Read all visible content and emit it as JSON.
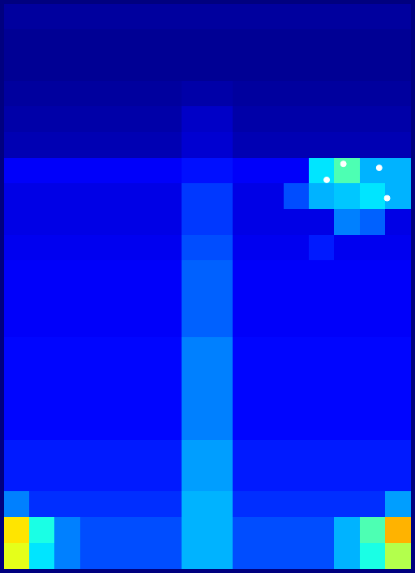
{
  "chart_data": {
    "type": "heatmap",
    "xlim": [
      0,
      512
    ],
    "ylim": [
      0,
      707
    ],
    "zlim": [
      0,
      1
    ],
    "grid": false,
    "tick_labels": false,
    "cells": [
      [
        0.03,
        0.03,
        0.03,
        0.03,
        0.03,
        0.03,
        0.03,
        0.03,
        0.03,
        0.03,
        0.03,
        0.03,
        0.03,
        0.03,
        0.03,
        0.03
      ],
      [
        0.02,
        0.02,
        0.02,
        0.02,
        0.02,
        0.02,
        0.02,
        0.02,
        0.02,
        0.02,
        0.02,
        0.02,
        0.02,
        0.02,
        0.02,
        0.02
      ],
      [
        0.02,
        0.02,
        0.02,
        0.02,
        0.02,
        0.02,
        0.02,
        0.02,
        0.02,
        0.02,
        0.02,
        0.02,
        0.02,
        0.02,
        0.02,
        0.02
      ],
      [
        0.03,
        0.03,
        0.03,
        0.03,
        0.03,
        0.03,
        0.03,
        0.04,
        0.04,
        0.03,
        0.03,
        0.03,
        0.03,
        0.03,
        0.03,
        0.03
      ],
      [
        0.04,
        0.04,
        0.04,
        0.04,
        0.04,
        0.04,
        0.04,
        0.07,
        0.07,
        0.04,
        0.04,
        0.04,
        0.04,
        0.04,
        0.04,
        0.04
      ],
      [
        0.05,
        0.05,
        0.05,
        0.05,
        0.05,
        0.05,
        0.05,
        0.08,
        0.08,
        0.05,
        0.05,
        0.05,
        0.05,
        0.05,
        0.05,
        0.05
      ],
      [
        0.12,
        0.12,
        0.12,
        0.12,
        0.12,
        0.12,
        0.12,
        0.14,
        0.14,
        0.12,
        0.12,
        0.12,
        0.35,
        0.45,
        0.3,
        0.3
      ],
      [
        0.1,
        0.1,
        0.1,
        0.1,
        0.1,
        0.1,
        0.1,
        0.18,
        0.18,
        0.1,
        0.1,
        0.2,
        0.3,
        0.32,
        0.35,
        0.3
      ],
      [
        0.1,
        0.1,
        0.1,
        0.1,
        0.1,
        0.1,
        0.1,
        0.18,
        0.18,
        0.1,
        0.1,
        0.1,
        0.1,
        0.25,
        0.22,
        0.1
      ],
      [
        0.11,
        0.11,
        0.11,
        0.11,
        0.11,
        0.11,
        0.11,
        0.2,
        0.2,
        0.11,
        0.11,
        0.11,
        0.15,
        0.11,
        0.11,
        0.11
      ],
      [
        0.12,
        0.12,
        0.12,
        0.12,
        0.12,
        0.12,
        0.12,
        0.22,
        0.22,
        0.12,
        0.12,
        0.12,
        0.12,
        0.12,
        0.12,
        0.12
      ],
      [
        0.12,
        0.12,
        0.12,
        0.12,
        0.12,
        0.12,
        0.12,
        0.22,
        0.22,
        0.12,
        0.12,
        0.12,
        0.12,
        0.12,
        0.12,
        0.12
      ],
      [
        0.12,
        0.12,
        0.12,
        0.12,
        0.12,
        0.12,
        0.12,
        0.22,
        0.22,
        0.12,
        0.12,
        0.12,
        0.12,
        0.12,
        0.12,
        0.12
      ],
      [
        0.13,
        0.13,
        0.13,
        0.13,
        0.13,
        0.13,
        0.13,
        0.25,
        0.25,
        0.13,
        0.13,
        0.13,
        0.13,
        0.13,
        0.13,
        0.13
      ],
      [
        0.13,
        0.13,
        0.13,
        0.13,
        0.13,
        0.13,
        0.13,
        0.25,
        0.25,
        0.13,
        0.13,
        0.13,
        0.13,
        0.13,
        0.13,
        0.13
      ],
      [
        0.13,
        0.13,
        0.13,
        0.13,
        0.13,
        0.13,
        0.13,
        0.25,
        0.25,
        0.13,
        0.13,
        0.13,
        0.13,
        0.13,
        0.13,
        0.13
      ],
      [
        0.13,
        0.13,
        0.13,
        0.13,
        0.13,
        0.13,
        0.13,
        0.25,
        0.25,
        0.13,
        0.13,
        0.13,
        0.13,
        0.13,
        0.13,
        0.13
      ],
      [
        0.15,
        0.15,
        0.15,
        0.15,
        0.15,
        0.15,
        0.15,
        0.28,
        0.28,
        0.15,
        0.15,
        0.15,
        0.15,
        0.15,
        0.15,
        0.15
      ],
      [
        0.15,
        0.15,
        0.15,
        0.15,
        0.15,
        0.15,
        0.15,
        0.28,
        0.28,
        0.15,
        0.15,
        0.15,
        0.15,
        0.15,
        0.15,
        0.15
      ],
      [
        0.25,
        0.17,
        0.17,
        0.17,
        0.17,
        0.17,
        0.17,
        0.3,
        0.3,
        0.17,
        0.17,
        0.17,
        0.17,
        0.17,
        0.17,
        0.28
      ],
      [
        0.65,
        0.4,
        0.25,
        0.2,
        0.2,
        0.2,
        0.2,
        0.3,
        0.3,
        0.2,
        0.2,
        0.2,
        0.2,
        0.3,
        0.45,
        0.7
      ],
      [
        0.6,
        0.35,
        0.25,
        0.2,
        0.2,
        0.2,
        0.2,
        0.3,
        0.3,
        0.2,
        0.2,
        0.2,
        0.2,
        0.3,
        0.4,
        0.55
      ]
    ],
    "points": {
      "x": [
        427,
        472,
        406,
        482
      ],
      "y": [
        200,
        205,
        220,
        243
      ],
      "color": "#ffffff",
      "marker": "circle"
    }
  }
}
